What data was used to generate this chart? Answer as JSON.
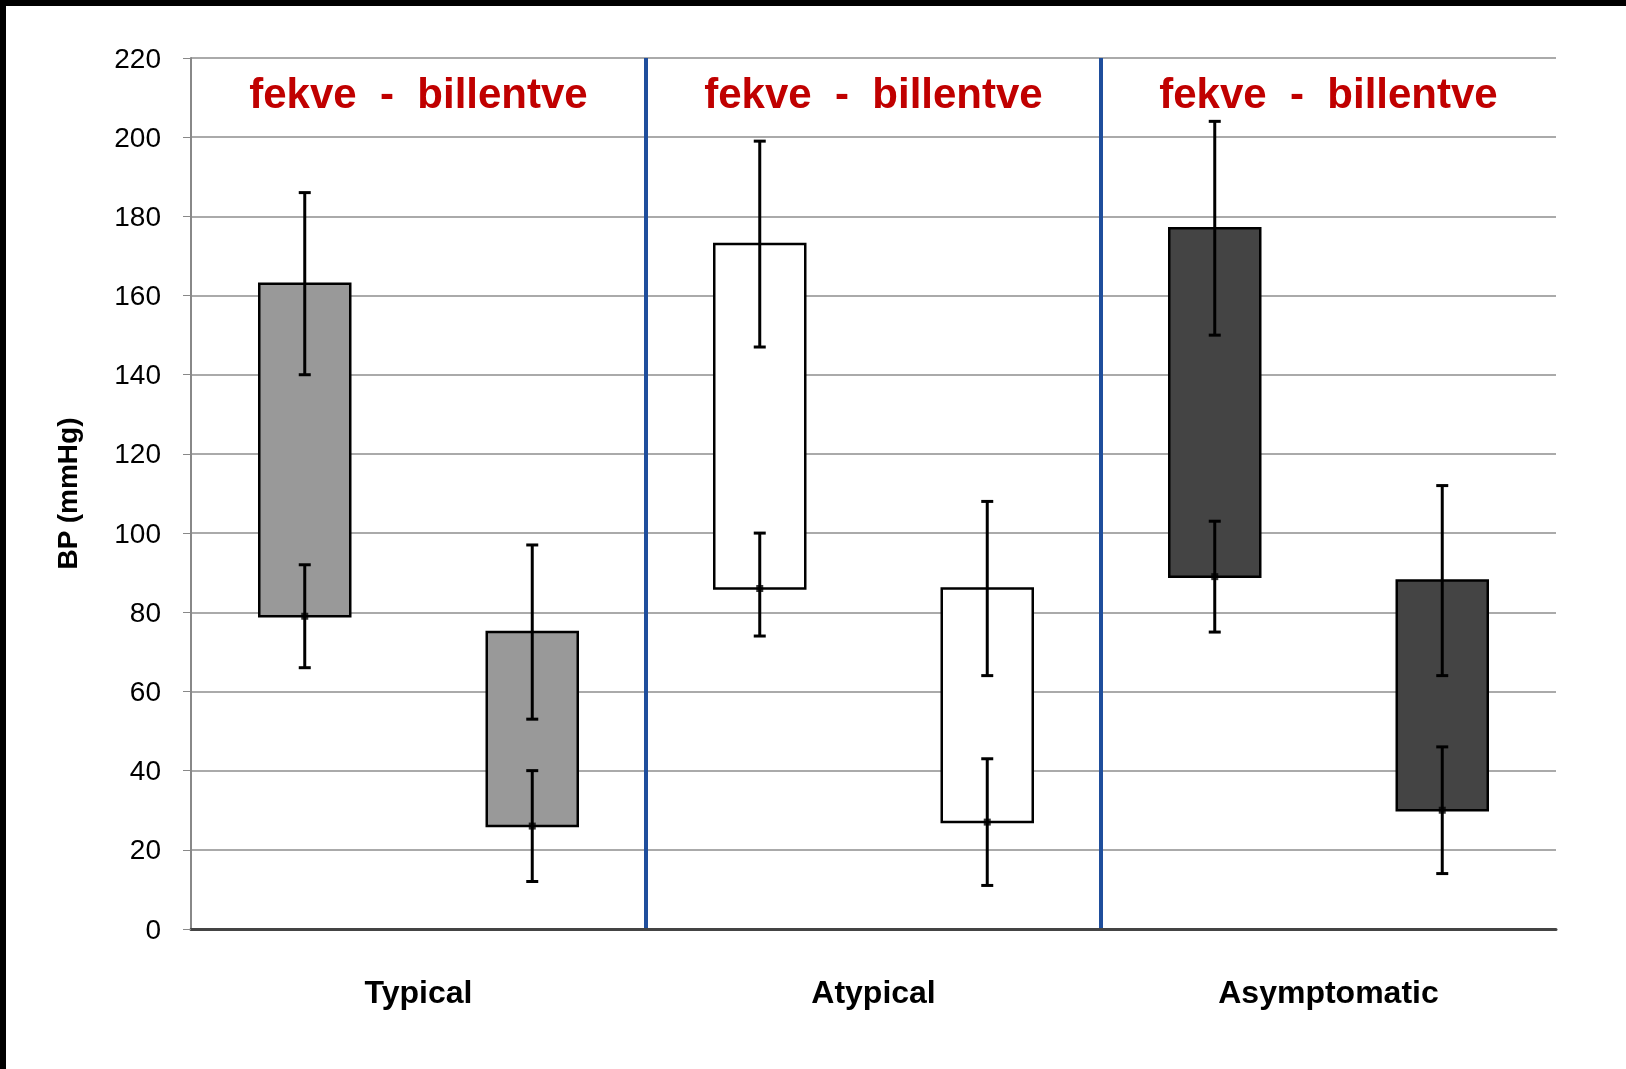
{
  "chart_data": {
    "type": "bar",
    "ylabel": "BP (mmHg)",
    "categories": [
      null,
      null,
      null,
      null,
      null,
      null
    ],
    "series": [
      {
        "colors": [
          "#999999",
          "#999999",
          "#ffffff",
          "#ffffff",
          "#444444",
          "#444444"
        ],
        "base": [
          79,
          26,
          86,
          27,
          89,
          30
        ],
        "values": [
          84,
          49,
          87,
          59,
          88,
          58
        ],
        "errors": [
          [
            140,
            186
          ],
          [
            53,
            97
          ],
          [
            147,
            199
          ],
          [
            64,
            108
          ],
          [
            150,
            204
          ],
          [
            64,
            112
          ]
        ]
      },
      {
        "type": "scatter",
        "marker": "square",
        "color": "#000000",
        "values": [
          79,
          26,
          86,
          27,
          89,
          30
        ],
        "errors": [
          [
            66,
            92
          ],
          [
            12,
            40
          ],
          [
            74,
            100
          ],
          [
            11,
            43
          ],
          [
            75,
            103
          ],
          [
            14,
            46
          ]
        ]
      }
    ],
    "annotations": [
      "fekve  -  billentve",
      "fekve  -  billentve",
      "fekve  -  billentve",
      "Typical",
      "Atypical",
      "Asymptomatic"
    ],
    "ylim": [
      0,
      220
    ],
    "yticks": [
      0,
      20,
      40,
      60,
      80,
      100,
      120,
      140,
      160,
      180,
      200,
      220
    ],
    "grid": "y"
  }
}
